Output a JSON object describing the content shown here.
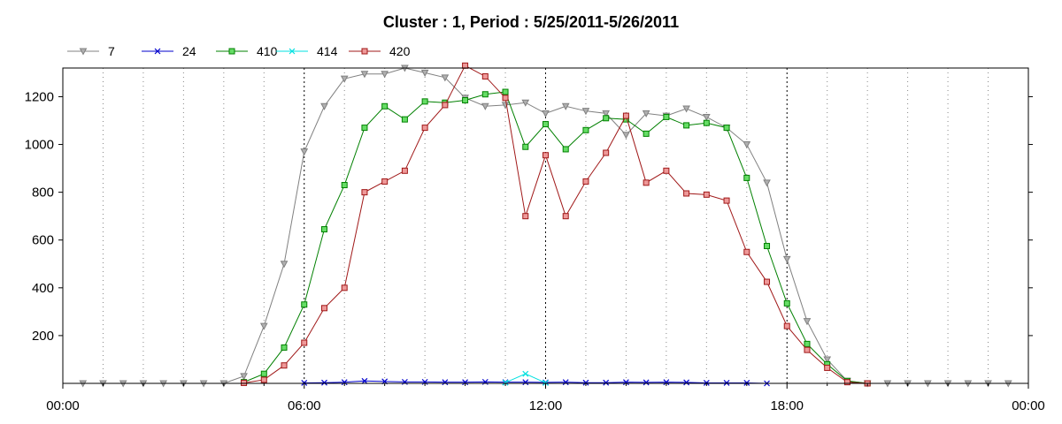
{
  "chart_data": {
    "type": "line",
    "title": "Cluster : 1, Period : 5/25/2011-5/26/2011",
    "xlabel": "",
    "ylabel": "",
    "x_unit": "hours",
    "xlim": [
      0,
      24
    ],
    "ylim": [
      0,
      1320
    ],
    "x_ticks": [
      {
        "value": 0,
        "label": "00:00"
      },
      {
        "value": 6,
        "label": "06:00"
      },
      {
        "value": 12,
        "label": "12:00"
      },
      {
        "value": 18,
        "label": "18:00"
      },
      {
        "value": 24,
        "label": "00:00"
      }
    ],
    "y_ticks": [
      200,
      400,
      600,
      800,
      1000,
      1200
    ],
    "grid": "vertical dotted",
    "legend_position": "top-left",
    "series": [
      {
        "name": "7",
        "color": "#808080",
        "marker": "triangle-down",
        "points": [
          [
            0.5,
            0
          ],
          [
            1,
            0
          ],
          [
            1.5,
            0
          ],
          [
            2,
            0
          ],
          [
            2.5,
            0
          ],
          [
            3,
            0
          ],
          [
            3.5,
            0
          ],
          [
            4,
            0
          ],
          [
            4.5,
            30
          ],
          [
            5,
            240
          ],
          [
            5.5,
            500
          ],
          [
            6,
            970
          ],
          [
            6.5,
            1160
          ],
          [
            7,
            1275
          ],
          [
            7.5,
            1295
          ],
          [
            8,
            1295
          ],
          [
            8.5,
            1320
          ],
          [
            9,
            1300
          ],
          [
            9.5,
            1280
          ],
          [
            10,
            1195
          ],
          [
            10.5,
            1160
          ],
          [
            11,
            1165
          ],
          [
            11.5,
            1175
          ],
          [
            12,
            1130
          ],
          [
            12.5,
            1160
          ],
          [
            13,
            1140
          ],
          [
            13.5,
            1130
          ],
          [
            14,
            1040
          ],
          [
            14.5,
            1130
          ],
          [
            15,
            1120
          ],
          [
            15.5,
            1150
          ],
          [
            16,
            1115
          ],
          [
            16.5,
            1070
          ],
          [
            17,
            1000
          ],
          [
            17.5,
            840
          ],
          [
            18,
            520
          ],
          [
            18.5,
            260
          ],
          [
            19,
            100
          ],
          [
            19.5,
            10
          ],
          [
            20,
            0
          ],
          [
            20.5,
            0
          ],
          [
            21,
            0
          ],
          [
            21.5,
            0
          ],
          [
            22,
            0
          ],
          [
            22.5,
            0
          ],
          [
            23,
            0
          ],
          [
            23.5,
            0
          ]
        ]
      },
      {
        "name": "24",
        "color": "#0000cc",
        "marker": "x",
        "points": [
          [
            6,
            2
          ],
          [
            6.5,
            3
          ],
          [
            7,
            5
          ],
          [
            7.5,
            10
          ],
          [
            8,
            8
          ],
          [
            8.5,
            6
          ],
          [
            9,
            6
          ],
          [
            9.5,
            5
          ],
          [
            10,
            5
          ],
          [
            10.5,
            6
          ],
          [
            11,
            5
          ],
          [
            11.5,
            5
          ],
          [
            12,
            4
          ],
          [
            12.5,
            5
          ],
          [
            13,
            3
          ],
          [
            13.5,
            3
          ],
          [
            14,
            5
          ],
          [
            14.5,
            4
          ],
          [
            15,
            5
          ],
          [
            15.5,
            4
          ],
          [
            16,
            2
          ],
          [
            16.5,
            2
          ],
          [
            17,
            2
          ],
          [
            17.5,
            0
          ]
        ]
      },
      {
        "name": "410",
        "color": "#008000",
        "fill": "#66dd66",
        "marker": "square",
        "points": [
          [
            4.5,
            5
          ],
          [
            5,
            40
          ],
          [
            5.5,
            150
          ],
          [
            6,
            330
          ],
          [
            6.5,
            645
          ],
          [
            7,
            830
          ],
          [
            7.5,
            1070
          ],
          [
            8,
            1160
          ],
          [
            8.5,
            1105
          ],
          [
            9,
            1180
          ],
          [
            9.5,
            1175
          ],
          [
            10,
            1185
          ],
          [
            10.5,
            1210
          ],
          [
            11,
            1220
          ],
          [
            11.5,
            990
          ],
          [
            12,
            1085
          ],
          [
            12.5,
            980
          ],
          [
            13,
            1060
          ],
          [
            13.5,
            1110
          ],
          [
            14,
            1105
          ],
          [
            14.5,
            1045
          ],
          [
            15,
            1115
          ],
          [
            15.5,
            1080
          ],
          [
            16,
            1090
          ],
          [
            16.5,
            1070
          ],
          [
            17,
            860
          ],
          [
            17.5,
            575
          ],
          [
            18,
            335
          ],
          [
            18.5,
            165
          ],
          [
            19,
            80
          ],
          [
            19.5,
            10
          ],
          [
            20,
            0
          ]
        ]
      },
      {
        "name": "414",
        "color": "#00e0e0",
        "marker": "x",
        "points": [
          [
            11,
            3
          ],
          [
            11.5,
            40
          ],
          [
            12,
            2
          ]
        ]
      },
      {
        "name": "420",
        "color": "#a01818",
        "fill": "#ee9999",
        "marker": "square",
        "points": [
          [
            4.5,
            2
          ],
          [
            5,
            15
          ],
          [
            5.5,
            75
          ],
          [
            6,
            170
          ],
          [
            6.5,
            315
          ],
          [
            7,
            400
          ],
          [
            7.5,
            800
          ],
          [
            8,
            845
          ],
          [
            8.5,
            890
          ],
          [
            9,
            1070
          ],
          [
            9.5,
            1165
          ],
          [
            10,
            1330
          ],
          [
            10.5,
            1285
          ],
          [
            11,
            1195
          ],
          [
            11.5,
            700
          ],
          [
            12,
            955
          ],
          [
            12.5,
            700
          ],
          [
            13,
            845
          ],
          [
            13.5,
            965
          ],
          [
            14,
            1120
          ],
          [
            14.5,
            840
          ],
          [
            15,
            890
          ],
          [
            15.5,
            795
          ],
          [
            16,
            790
          ],
          [
            16.5,
            765
          ],
          [
            17,
            550
          ],
          [
            17.5,
            425
          ],
          [
            18,
            240
          ],
          [
            18.5,
            140
          ],
          [
            19,
            65
          ],
          [
            19.5,
            5
          ],
          [
            20,
            0
          ]
        ]
      }
    ]
  }
}
